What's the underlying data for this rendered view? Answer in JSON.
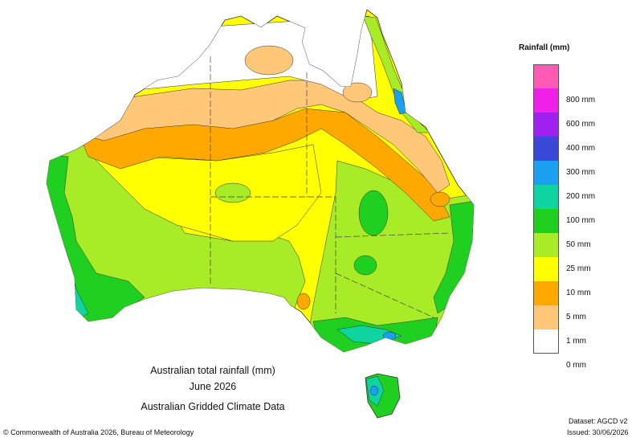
{
  "map": {
    "title_line1": "Australian total rainfall (mm)",
    "title_line2": "June 2026",
    "title_line3": "Australian Gridded Climate Data",
    "copyright": "© Commonwealth of Australia 2026, Bureau of Meteorology",
    "dataset": "Dataset: AGCD v2",
    "issued": "Issued: 30/06/2026"
  },
  "legend": {
    "title": "Rainfall (mm)",
    "classes": [
      {
        "label": "",
        "color": "#ff5ab4"
      },
      {
        "label": "800 mm",
        "color": "#f020e8"
      },
      {
        "label": "600 mm",
        "color": "#a020f0"
      },
      {
        "label": "400 mm",
        "color": "#3a48d8"
      },
      {
        "label": "300 mm",
        "color": "#1aa0f0"
      },
      {
        "label": "200 mm",
        "color": "#10d4a0"
      },
      {
        "label": "100 mm",
        "color": "#20d020"
      },
      {
        "label": "50 mm",
        "color": "#a8ec28"
      },
      {
        "label": "25 mm",
        "color": "#ffff00"
      },
      {
        "label": "10 mm",
        "color": "#ffa800"
      },
      {
        "label": "5 mm",
        "color": "#ffc878"
      },
      {
        "label": "1 mm",
        "color": "#ffffff"
      },
      {
        "label": "0 mm",
        "color": ""
      }
    ]
  }
}
